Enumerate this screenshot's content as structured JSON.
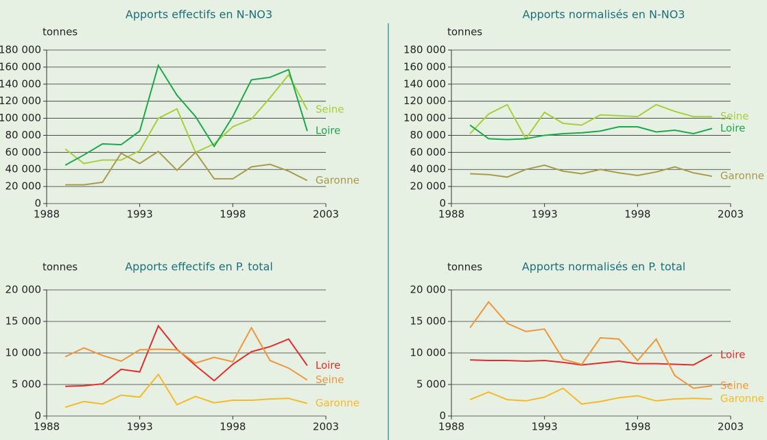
{
  "chart_data": [
    {
      "type": "line",
      "title": "Apports effectifs en N-NO3",
      "y_label": "tonnes",
      "x": [
        1989,
        1990,
        1991,
        1992,
        1993,
        1994,
        1995,
        1996,
        1997,
        1998,
        1999,
        2000,
        2001,
        2002
      ],
      "xlim": [
        1988,
        2003
      ],
      "xticks": [
        1988,
        1993,
        1998,
        2003
      ],
      "ylim": [
        0,
        180000
      ],
      "yticks": [
        0,
        {
          "value": 20000,
          "label": "20 000"
        },
        {
          "value": 40000,
          "label": "40 000"
        },
        {
          "value": 60000,
          "label": "60 000"
        },
        {
          "value": 80000,
          "label": "80 000"
        },
        {
          "value": 100000,
          "label": "100 000"
        },
        {
          "value": 120000,
          "label": "120 000"
        },
        {
          "value": 140000,
          "label": "140 000"
        },
        {
          "value": 160000,
          "label": "160 000"
        },
        {
          "value": 180000,
          "label": "180 000"
        }
      ],
      "grid": true,
      "series": [
        {
          "name": "Seine",
          "color": "#a6cf3a",
          "values": [
            64000,
            47000,
            51000,
            51000,
            62000,
            100000,
            111000,
            60000,
            70000,
            90000,
            99000,
            124000,
            151000,
            110000
          ]
        },
        {
          "name": "Loire",
          "color": "#1aa84a",
          "values": [
            45000,
            57000,
            70000,
            69000,
            85000,
            162000,
            127000,
            102000,
            67000,
            102000,
            145000,
            148000,
            157000,
            85000
          ]
        },
        {
          "name": "Garonne",
          "color": "#a89a4a",
          "values": [
            22000,
            22000,
            25000,
            59000,
            47000,
            61000,
            39000,
            60000,
            29000,
            29000,
            43000,
            46000,
            38000,
            27000
          ]
        }
      ]
    },
    {
      "type": "line",
      "title": "Apports normalisés en N-NO3",
      "y_label": "tonnes",
      "x": [
        1989,
        1990,
        1991,
        1992,
        1993,
        1994,
        1995,
        1996,
        1997,
        1998,
        1999,
        2000,
        2001,
        2002
      ],
      "xlim": [
        1988,
        2003
      ],
      "xticks": [
        1988,
        1993,
        1998,
        2003
      ],
      "ylim": [
        0,
        180000
      ],
      "yticks": [
        0,
        {
          "value": 20000,
          "label": "20 000"
        },
        {
          "value": 40000,
          "label": "40 000"
        },
        {
          "value": 60000,
          "label": "60 000"
        },
        {
          "value": 80000,
          "label": "80 000"
        },
        {
          "value": 100000,
          "label": "100 000"
        },
        {
          "value": 120000,
          "label": "120 000"
        },
        {
          "value": 140000,
          "label": "140 000"
        },
        {
          "value": 160000,
          "label": "160 000"
        },
        {
          "value": 180000,
          "label": "180 000"
        }
      ],
      "grid": true,
      "series": [
        {
          "name": "Seine",
          "color": "#a6cf3a",
          "values": [
            82000,
            105000,
            116000,
            76000,
            107000,
            94000,
            92000,
            104000,
            103000,
            102000,
            116000,
            108000,
            102000,
            102000
          ]
        },
        {
          "name": "Loire",
          "color": "#1aa84a",
          "values": [
            92000,
            76000,
            75000,
            76000,
            80000,
            82000,
            83000,
            85000,
            90000,
            90000,
            84000,
            86000,
            82000,
            88000
          ]
        },
        {
          "name": "Garonne",
          "color": "#a89a4a",
          "values": [
            35000,
            34000,
            31000,
            40000,
            45000,
            38000,
            35000,
            40000,
            36000,
            33000,
            37000,
            43000,
            36000,
            32000
          ]
        }
      ]
    },
    {
      "type": "line",
      "title": "Apports effectifs en P. total",
      "y_label": "tonnes",
      "x": [
        1989,
        1990,
        1991,
        1992,
        1993,
        1994,
        1995,
        1996,
        1997,
        1998,
        1999,
        2000,
        2001,
        2002
      ],
      "xlim": [
        1988,
        2003
      ],
      "xticks": [
        1988,
        1993,
        1998,
        2003
      ],
      "ylim": [
        0,
        20000
      ],
      "yticks": [
        0,
        {
          "value": 5000,
          "label": "5 000"
        },
        {
          "value": 10000,
          "label": "10 000"
        },
        {
          "value": 15000,
          "label": "15 000"
        },
        {
          "value": 20000,
          "label": "20 000"
        }
      ],
      "grid": true,
      "series": [
        {
          "name": "Loire",
          "color": "#e32b2b",
          "values": [
            4700,
            4800,
            5100,
            7400,
            7000,
            14300,
            10600,
            8000,
            5600,
            8200,
            10200,
            11000,
            12200,
            8000
          ]
        },
        {
          "name": "Seine",
          "color": "#f0953a",
          "values": [
            9400,
            10800,
            9600,
            8700,
            10500,
            10600,
            10500,
            8400,
            9300,
            8600,
            14000,
            8800,
            7600,
            5700
          ]
        },
        {
          "name": "Garonne",
          "color": "#f7b928",
          "values": [
            1400,
            2300,
            1900,
            3300,
            3000,
            6600,
            1800,
            3100,
            2100,
            2500,
            2500,
            2700,
            2800,
            2000
          ]
        }
      ]
    },
    {
      "type": "line",
      "title": "Apports normalisés en P. total",
      "y_label": "tonnes",
      "x": [
        1989,
        1990,
        1991,
        1992,
        1993,
        1994,
        1995,
        1996,
        1997,
        1998,
        1999,
        2000,
        2001,
        2002
      ],
      "xlim": [
        1988,
        2003
      ],
      "xticks": [
        1988,
        1993,
        1998,
        2003
      ],
      "ylim": [
        0,
        20000
      ],
      "yticks": [
        0,
        {
          "value": 5000,
          "label": "5 000"
        },
        {
          "value": 10000,
          "label": "10 000"
        },
        {
          "value": 15000,
          "label": "15 000"
        },
        {
          "value": 20000,
          "label": "20 000"
        }
      ],
      "grid": true,
      "series": [
        {
          "name": "Loire",
          "color": "#e32b2b",
          "values": [
            8900,
            8800,
            8800,
            8700,
            8800,
            8500,
            8100,
            8400,
            8700,
            8300,
            8300,
            8200,
            8100,
            9700
          ]
        },
        {
          "name": "Seine",
          "color": "#f0953a",
          "values": [
            14000,
            18100,
            14700,
            13400,
            13800,
            9000,
            8200,
            12400,
            12200,
            8800,
            12200,
            6400,
            4400,
            4800
          ]
        },
        {
          "name": "Garonne",
          "color": "#f7b928",
          "values": [
            2600,
            3800,
            2600,
            2400,
            3000,
            4400,
            1900,
            2300,
            2900,
            3200,
            2400,
            2700,
            2800,
            2700
          ]
        }
      ]
    }
  ]
}
